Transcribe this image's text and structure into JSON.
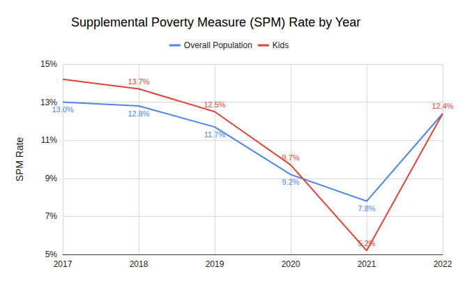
{
  "chart_data": {
    "type": "line",
    "title": "Supplemental Poverty Measure (SPM) Rate by Year",
    "y_label": "SPM Rate",
    "categories": [
      "2017",
      "2018",
      "2019",
      "2020",
      "2021",
      "2022"
    ],
    "series": [
      {
        "name": "Overall Population",
        "color": "#4a86e8",
        "values": [
          13.0,
          12.8,
          11.7,
          9.2,
          7.8,
          12.4
        ],
        "value_labels": [
          "13.0%",
          "12.8%",
          "11.7%",
          "9.2%",
          "7.8%",
          null
        ]
      },
      {
        "name": "Kids",
        "color": "#db4437",
        "values": [
          14.2,
          13.7,
          12.5,
          9.7,
          5.2,
          12.4
        ],
        "value_labels": [
          null,
          "13.7%",
          "12.5%",
          "9.7%",
          "5.2%",
          "12.4%"
        ]
      }
    ],
    "ylim": [
      5,
      15
    ],
    "yticks": [
      {
        "value": 5,
        "label": "5%"
      },
      {
        "value": 7,
        "label": "7%"
      },
      {
        "value": 9,
        "label": "9%"
      },
      {
        "value": 11,
        "label": "11%"
      },
      {
        "value": 13,
        "label": "13%"
      },
      {
        "value": 15,
        "label": "15%"
      }
    ],
    "grid": true,
    "legend": "top",
    "data_labels": true,
    "marker": "none"
  }
}
